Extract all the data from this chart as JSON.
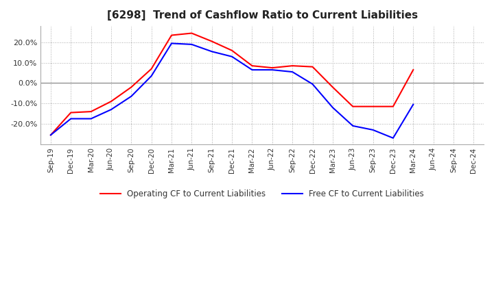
{
  "title": "[6298]  Trend of Cashflow Ratio to Current Liabilities",
  "title_fontsize": 11,
  "x_labels": [
    "Sep-19",
    "Dec-19",
    "Mar-20",
    "Jun-20",
    "Sep-20",
    "Dec-20",
    "Mar-21",
    "Jun-21",
    "Sep-21",
    "Dec-21",
    "Mar-22",
    "Jun-22",
    "Sep-22",
    "Dec-22",
    "Mar-23",
    "Jun-23",
    "Sep-23",
    "Dec-23",
    "Mar-24",
    "Jun-24",
    "Sep-24",
    "Dec-24"
  ],
  "operating_cf": [
    -0.255,
    -0.145,
    -0.14,
    -0.09,
    -0.02,
    0.07,
    0.235,
    0.245,
    0.205,
    0.16,
    0.085,
    0.075,
    0.085,
    0.08,
    -0.02,
    -0.115,
    -0.115,
    -0.115,
    0.065,
    null,
    null,
    null
  ],
  "free_cf": [
    -0.255,
    -0.175,
    -0.175,
    -0.13,
    -0.065,
    0.035,
    0.195,
    0.19,
    0.155,
    0.13,
    0.065,
    0.065,
    0.055,
    -0.005,
    -0.12,
    -0.21,
    -0.23,
    -0.27,
    -0.105,
    null,
    null,
    null
  ],
  "ylim": [
    -0.3,
    0.28
  ],
  "yticks": [
    -0.2,
    -0.1,
    0.0,
    0.1,
    0.2
  ],
  "operating_color": "#ff0000",
  "free_color": "#0000ff",
  "grid_color": "#aaaaaa",
  "zero_line_color": "#888888",
  "background_color": "#ffffff",
  "legend_labels": [
    "Operating CF to Current Liabilities",
    "Free CF to Current Liabilities"
  ],
  "linewidth": 1.5
}
